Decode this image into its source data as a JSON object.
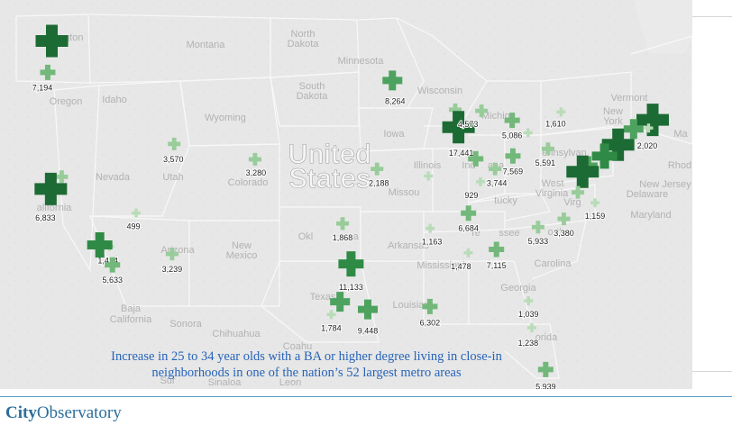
{
  "map": {
    "country_label_lines": [
      "United",
      "States"
    ],
    "region_labels": [
      {
        "text": "ngton"
      },
      {
        "text": "Montana"
      },
      {
        "text": "North"
      },
      {
        "text": "Dakota"
      },
      {
        "text": "Minnesota"
      },
      {
        "text": "Wisconsin"
      },
      {
        "text": "South"
      },
      {
        "text": "Dakota"
      },
      {
        "text": "Oregon"
      },
      {
        "text": "Idaho"
      },
      {
        "text": "Wyoming"
      },
      {
        "text": "Iowa"
      },
      {
        "text": "Michiga"
      },
      {
        "text": "Vermont"
      },
      {
        "text": "New"
      },
      {
        "text": "York"
      },
      {
        "text": "Ma"
      },
      {
        "text": "Nevada"
      },
      {
        "text": "Utah"
      },
      {
        "text": "Colorado"
      },
      {
        "text": "Illinois"
      },
      {
        "text": "Ind"
      },
      {
        "text": "ana"
      },
      {
        "text": "ennsylvan"
      },
      {
        "text": "Rhod"
      },
      {
        "text": "New Jersey"
      },
      {
        "text": "Delaware"
      },
      {
        "text": "alifornia"
      },
      {
        "text": "Missou"
      },
      {
        "text": "West"
      },
      {
        "text": "Virginia"
      },
      {
        "text": "tucky"
      },
      {
        "text": "Virg"
      },
      {
        "text": "Maryland"
      },
      {
        "text": "Okl"
      },
      {
        "text": "oma"
      },
      {
        "text": "Arkansas"
      },
      {
        "text": "Te"
      },
      {
        "text": "ssee"
      },
      {
        "text": "Arizona"
      },
      {
        "text": "New"
      },
      {
        "text": "Mexico"
      },
      {
        "text": "Mississippi"
      },
      {
        "text": "Georgia"
      },
      {
        "text": "Carolina"
      },
      {
        "text": "orth"
      },
      {
        "text": "Texas"
      },
      {
        "text": "Louisian"
      },
      {
        "text": "Baja"
      },
      {
        "text": "California"
      },
      {
        "text": "Sonora"
      },
      {
        "text": "Chihuahua"
      },
      {
        "text": "Coahu"
      },
      {
        "text": "orida"
      },
      {
        "text": "Sur"
      },
      {
        "text": "Sinaloa"
      },
      {
        "text": "Leon"
      }
    ],
    "markers": [
      {
        "metro": "Seattle",
        "value": null,
        "size": "xl",
        "lon": -122.33,
        "lat": 47.61
      },
      {
        "metro": "Portland",
        "value": "7,194",
        "size": "sm",
        "lon": -122.68,
        "lat": 45.52
      },
      {
        "metro": "Sacramento",
        "value": null,
        "size": "xs",
        "lon": -121.49,
        "lat": 38.58
      },
      {
        "metro": "San Francisco",
        "value": "6,833",
        "size": "xl",
        "lon": -122.42,
        "lat": 37.77
      },
      {
        "metro": "Salt Lake City",
        "value": "3,570",
        "size": "xs",
        "lon": -111.89,
        "lat": 40.76
      },
      {
        "metro": "Las Vegas",
        "value": "499",
        "size": "xxs",
        "lon": -115.14,
        "lat": 36.17
      },
      {
        "metro": "Riverside",
        "value": "1,414",
        "size": "xxs",
        "lon": -117.4,
        "lat": 33.95
      },
      {
        "metro": "Los Angeles",
        "value": null,
        "size": "lg",
        "lon": -118.24,
        "lat": 34.05
      },
      {
        "metro": "San Diego",
        "value": "5,633",
        "size": "sm",
        "lon": -117.16,
        "lat": 32.72
      },
      {
        "metro": "Phoenix",
        "value": "3,239",
        "size": "xs",
        "lon": -112.07,
        "lat": 33.45
      },
      {
        "metro": "Denver",
        "value": "3,280",
        "size": "xs",
        "lon": -104.99,
        "lat": 39.74
      },
      {
        "metro": "Minneapolis",
        "value": "8,264",
        "size": "md",
        "lon": -93.27,
        "lat": 44.98
      },
      {
        "metro": "Milwaukee",
        "value": null,
        "size": "xs",
        "lon": -87.91,
        "lat": 43.04
      },
      {
        "metro": "Chicago",
        "value": "17,441",
        "size": "xl",
        "lon": -87.63,
        "lat": 41.88
      },
      {
        "metro": "Grand Rapids",
        "value": "4,573",
        "size": "xs",
        "lon": -85.67,
        "lat": 42.96
      },
      {
        "metro": "Detroit",
        "value": "5,086",
        "size": "sm",
        "lon": -83.05,
        "lat": 42.33
      },
      {
        "metro": "Kansas City",
        "value": "2,188",
        "size": "xs",
        "lon": -94.58,
        "lat": 39.1
      },
      {
        "metro": "St. Louis",
        "value": null,
        "size": "xxs",
        "lon": -90.2,
        "lat": 38.63
      },
      {
        "metro": "Indianapolis",
        "value": null,
        "size": "sm",
        "lon": -86.16,
        "lat": 39.77
      },
      {
        "metro": "Louisville",
        "value": "929",
        "size": "xxs",
        "lon": -85.76,
        "lat": 38.25
      },
      {
        "metro": "Cincinnati",
        "value": "3,744",
        "size": "xs",
        "lon": -84.51,
        "lat": 39.1
      },
      {
        "metro": "Columbus",
        "value": "7,569",
        "size": "sm",
        "lon": -82.99,
        "lat": 39.96
      },
      {
        "metro": "Cleveland",
        "value": null,
        "size": "xxs",
        "lon": -81.69,
        "lat": 41.5
      },
      {
        "metro": "Buffalo",
        "value": "1,610",
        "size": "xxs",
        "lon": -78.88,
        "lat": 42.89
      },
      {
        "metro": "Pittsburgh",
        "value": "5,591",
        "size": "xs",
        "lon": -79.99,
        "lat": 40.44
      },
      {
        "metro": "Boston",
        "value": "2,020",
        "size": "xl",
        "lon": -71.06,
        "lat": 42.36
      },
      {
        "metro": "Providence",
        "value": null,
        "size": "xxs",
        "lon": -71.41,
        "lat": 41.82
      },
      {
        "metro": "Hartford",
        "value": null,
        "size": "md",
        "lon": -72.69,
        "lat": 41.76
      },
      {
        "metro": "New York",
        "value": null,
        "size": "xl",
        "lon": -74.01,
        "lat": 40.71
      },
      {
        "metro": "Philadelphia",
        "value": null,
        "size": "lg",
        "lon": -75.17,
        "lat": 39.95
      },
      {
        "metro": "Baltimore",
        "value": null,
        "size": "md",
        "lon": -76.61,
        "lat": 39.29
      },
      {
        "metro": "Washington",
        "value": null,
        "size": "xl",
        "lon": -77.04,
        "lat": 38.91
      },
      {
        "metro": "Richmond",
        "value": null,
        "size": "xs",
        "lon": -77.44,
        "lat": 37.54
      },
      {
        "metro": "Virginia Beach",
        "value": "1,159",
        "size": "xxs",
        "lon": -75.98,
        "lat": 36.85
      },
      {
        "metro": "Oklahoma City",
        "value": "1,868",
        "size": "xs",
        "lon": -97.52,
        "lat": 35.47
      },
      {
        "metro": "Memphis",
        "value": "1,163",
        "size": "xxs",
        "lon": -90.05,
        "lat": 35.15
      },
      {
        "metro": "Nashville",
        "value": "6,684",
        "size": "sm",
        "lon": -86.78,
        "lat": 36.16
      },
      {
        "metro": "Raleigh",
        "value": "3,380",
        "size": "xs",
        "lon": -78.64,
        "lat": 35.78
      },
      {
        "metro": "Charlotte",
        "value": "5,933",
        "size": "xs",
        "lon": -80.84,
        "lat": 35.23
      },
      {
        "metro": "Birmingham",
        "value": "1,478",
        "size": "xxs",
        "lon": -86.8,
        "lat": 33.52
      },
      {
        "metro": "Atlanta",
        "value": "7,115",
        "size": "sm",
        "lon": -84.39,
        "lat": 33.75
      },
      {
        "metro": "Dallas",
        "value": "11,133",
        "size": "lg",
        "lon": -96.8,
        "lat": 32.78
      },
      {
        "metro": "Austin",
        "value": null,
        "size": "md",
        "lon": -97.74,
        "lat": 30.27
      },
      {
        "metro": "San Antonio",
        "value": "1,784",
        "size": "xxs",
        "lon": -98.49,
        "lat": 29.42
      },
      {
        "metro": "Houston",
        "value": "9,448",
        "size": "md",
        "lon": -95.37,
        "lat": 29.76
      },
      {
        "metro": "New Orleans",
        "value": "6,302",
        "size": "sm",
        "lon": -90.07,
        "lat": 29.95
      },
      {
        "metro": "Jacksonville",
        "value": "1,039",
        "size": "xxs",
        "lon": -81.66,
        "lat": 30.33
      },
      {
        "metro": "Orlando",
        "value": "1,238",
        "size": "xxs",
        "lon": -81.38,
        "lat": 28.54
      },
      {
        "metro": "Miami",
        "value": "5,939",
        "size": "sm",
        "lon": -80.19,
        "lat": 25.76
      }
    ],
    "colors": {
      "xl": "#1d6b34",
      "lg": "#2f8a45",
      "md": "#4ea25f",
      "sm": "#72b87a",
      "xs": "#98cc9a",
      "xxs": "#b9dcb8"
    }
  },
  "caption": {
    "line1": "Increase in 25 to 34 year olds with a BA or higher degree living in close-in",
    "line2": "neighborhoods in one of the nation’s 52 largest metro areas"
  },
  "footer": {
    "brand_city": "City",
    "brand_observatory": "Observatory"
  }
}
